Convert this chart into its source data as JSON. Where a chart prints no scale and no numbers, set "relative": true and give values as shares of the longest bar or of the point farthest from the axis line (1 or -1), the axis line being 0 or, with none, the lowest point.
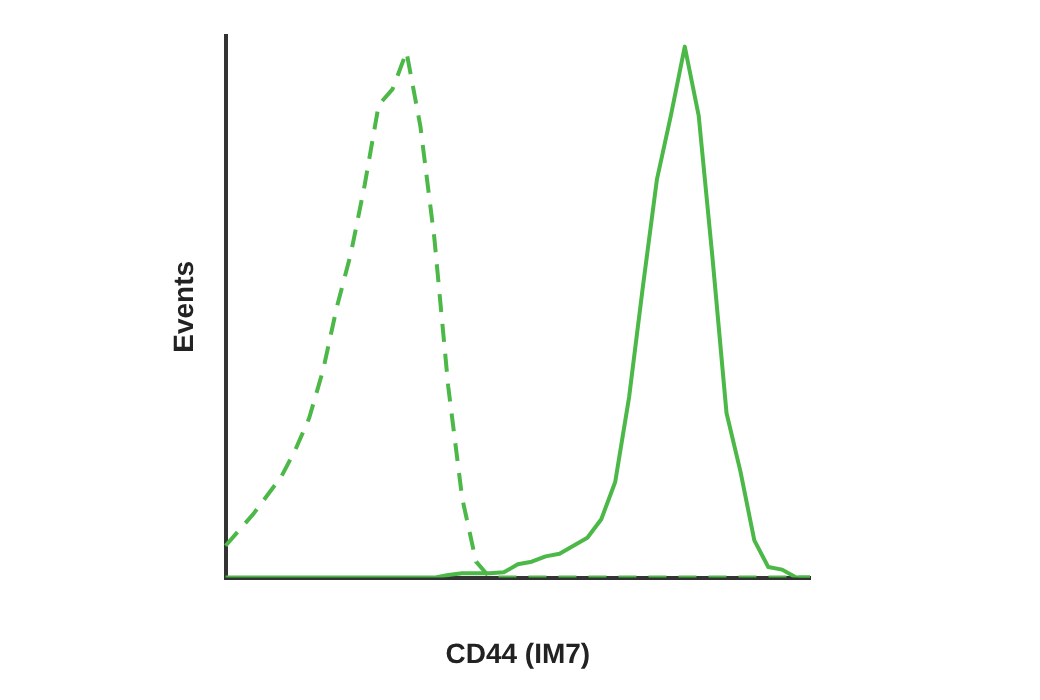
{
  "chart_data": {
    "type": "line",
    "relative": true,
    "xlabel": "CD44 (IM7)",
    "ylabel": "Events",
    "grid": false,
    "categories": [
      null,
      null,
      null,
      null,
      null,
      null,
      null,
      null,
      null,
      null,
      null,
      null,
      null,
      null,
      null,
      null,
      null,
      null,
      null,
      null,
      null,
      null,
      null,
      null,
      null,
      null,
      null,
      null,
      null,
      null,
      null,
      null,
      null,
      null,
      null,
      null,
      null,
      null,
      null,
      null,
      null,
      null,
      null
    ],
    "series": [
      {
        "color": "#4cb848",
        "line_style": "dashed",
        "values": [
          0.06,
          0.09,
          0.12,
          0.155,
          0.19,
          0.24,
          0.3,
          0.39,
          0.51,
          0.61,
          0.74,
          0.89,
          0.92,
          0.99,
          0.85,
          0.64,
          0.36,
          0.15,
          0.03,
          0,
          0,
          0,
          0,
          0,
          0,
          0,
          0,
          0,
          0,
          0,
          0,
          0,
          0,
          0,
          0,
          0,
          0,
          0,
          0,
          0,
          0,
          0,
          0
        ]
      },
      {
        "color": "#4cb848",
        "line_style": "solid",
        "values": [
          0,
          0,
          0,
          0,
          0,
          0,
          0,
          0,
          0,
          0,
          0,
          0,
          0,
          0,
          0,
          0,
          0.005,
          0.008,
          0.008,
          0.008,
          0.01,
          0.025,
          0.03,
          0.04,
          0.045,
          0.06,
          0.075,
          0.11,
          0.18,
          0.34,
          0.55,
          0.75,
          0.87,
          1,
          0.87,
          0.6,
          0.31,
          0.2,
          0.07,
          0.02,
          0.015,
          0,
          0
        ]
      }
    ]
  }
}
